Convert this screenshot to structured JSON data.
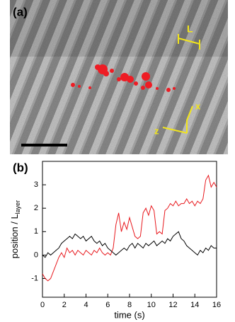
{
  "panel_a": {
    "label": "(a)",
    "length_label": "L",
    "x_axis_label": "x",
    "z_axis_label": "z"
  },
  "chart_data": {
    "type": "line",
    "panel_label": "(b)",
    "xlabel": "time (s)",
    "ylabel": "position / L",
    "ylabel_sub": "layer",
    "x": [
      0,
      0.25,
      0.5,
      0.75,
      1,
      1.25,
      1.5,
      1.75,
      2,
      2.25,
      2.5,
      2.75,
      3,
      3.25,
      3.5,
      3.75,
      4,
      4.25,
      4.5,
      4.75,
      5,
      5.25,
      5.5,
      5.75,
      6,
      6.25,
      6.5,
      6.75,
      7,
      7.25,
      7.5,
      7.75,
      8,
      8.25,
      8.5,
      8.75,
      9,
      9.25,
      9.5,
      9.75,
      10,
      10.25,
      10.5,
      10.75,
      11,
      11.25,
      11.5,
      11.75,
      12,
      12.25,
      12.5,
      12.75,
      13,
      13.25,
      13.5,
      13.75,
      14,
      14.25,
      14.5,
      14.75,
      15,
      15.25,
      15.5,
      15.75,
      16
    ],
    "series": [
      {
        "color": "#e8191e",
        "values": [
          -0.8,
          -1.0,
          -1.1,
          -1.0,
          -0.7,
          -0.4,
          -0.1,
          0.1,
          -0.1,
          0.3,
          0.1,
          0.2,
          0.0,
          0.2,
          0.1,
          0.0,
          0.2,
          0.1,
          0.0,
          0.2,
          0.1,
          0.3,
          0.1,
          0.0,
          0.1,
          0.0,
          0.3,
          1.3,
          1.8,
          1.0,
          1.4,
          1.1,
          1.6,
          1.2,
          0.8,
          0.7,
          0.8,
          1.8,
          2.0,
          1.7,
          2.1,
          1.9,
          0.9,
          1.0,
          0.9,
          1.9,
          2.0,
          2.2,
          2.1,
          2.3,
          2.1,
          2.2,
          2.2,
          2.4,
          2.2,
          2.3,
          2.1,
          2.3,
          2.2,
          2.4,
          3.2,
          3.4,
          2.9,
          3.1,
          2.9
        ]
      },
      {
        "color": "#000000",
        "values": [
          0.0,
          -0.1,
          0.1,
          0.0,
          0.1,
          0.2,
          0.3,
          0.5,
          0.6,
          0.7,
          0.8,
          0.7,
          0.9,
          0.8,
          0.7,
          0.8,
          0.6,
          0.7,
          0.8,
          0.6,
          0.5,
          0.6,
          0.4,
          0.5,
          0.3,
          0.2,
          0.1,
          0.0,
          0.1,
          0.2,
          0.3,
          0.2,
          0.4,
          0.5,
          0.3,
          0.5,
          0.4,
          0.3,
          0.5,
          0.4,
          0.5,
          0.6,
          0.4,
          0.5,
          0.6,
          0.5,
          0.7,
          0.6,
          0.8,
          0.9,
          1.0,
          0.7,
          0.6,
          0.4,
          0.3,
          0.2,
          0.1,
          0.0,
          0.2,
          0.1,
          0.3,
          0.2,
          0.4,
          0.3,
          0.3
        ]
      }
    ],
    "xlim": [
      0,
      16
    ],
    "xticks": [
      0,
      2,
      4,
      6,
      8,
      10,
      12,
      14,
      16
    ],
    "ylim": [
      -1.8,
      4
    ],
    "yticks": [
      -1,
      0,
      1,
      2,
      3
    ]
  }
}
